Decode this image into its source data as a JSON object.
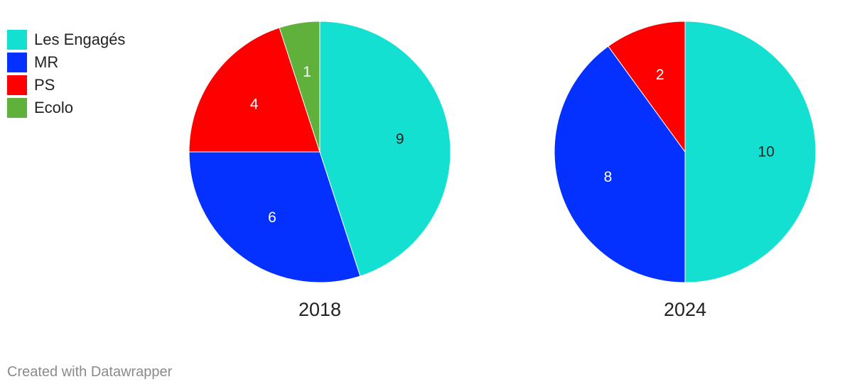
{
  "legend": {
    "items": [
      {
        "label": "Les Engagés",
        "color": "#14e0d2"
      },
      {
        "label": "MR",
        "color": "#0431ff"
      },
      {
        "label": "PS",
        "color": "#ff0000"
      },
      {
        "label": "Ecolo",
        "color": "#5fb13c"
      }
    ]
  },
  "chart_data": [
    {
      "type": "pie",
      "title": "2018",
      "categories": [
        "Les Engagés",
        "MR",
        "PS",
        "Ecolo"
      ],
      "values": [
        9,
        6,
        4,
        1
      ],
      "value_labels": [
        "9",
        "6",
        "4",
        "1"
      ],
      "colors": [
        "#14e0d2",
        "#0431ff",
        "#ff0000",
        "#5fb13c"
      ]
    },
    {
      "type": "pie",
      "title": "2024",
      "categories": [
        "Les Engagés",
        "MR",
        "PS"
      ],
      "values": [
        10,
        8,
        2
      ],
      "value_labels": [
        "10",
        "8",
        "2"
      ],
      "colors": [
        "#14e0d2",
        "#0431ff",
        "#ff0000"
      ]
    }
  ],
  "footer": {
    "credit": "Created with Datawrapper"
  }
}
